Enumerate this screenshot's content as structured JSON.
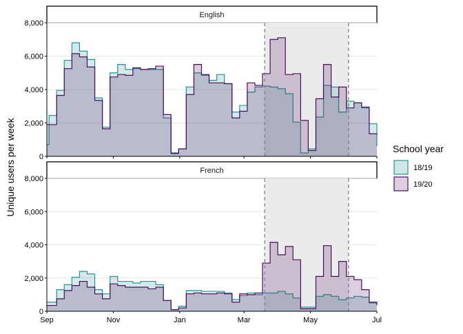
{
  "chart_data": {
    "type": "area",
    "ylabel": "Unique users per week",
    "xlabel": "",
    "x_ticks": [
      "Sep",
      "Nov",
      "Jan",
      "Mar",
      "May",
      "Jul"
    ],
    "y_ticks": [
      "0",
      "2,000",
      "4,000",
      "6,000",
      "8,000"
    ],
    "ylim": [
      0,
      8000
    ],
    "x_range": [
      "2018-09-01",
      "2019-07-01"
    ],
    "legend": {
      "title": "School year",
      "position": "right",
      "entries": [
        {
          "label": "18/19",
          "fill": "#d0e6e6",
          "stroke": "#2a9196"
        },
        {
          "label": "19/20",
          "fill": "#dccfe0",
          "stroke": "#4a0c5c"
        }
      ]
    },
    "shaded_period": {
      "start": "2019-03-20",
      "end": "2019-06-05"
    },
    "grid": true,
    "panels": [
      {
        "title": "English",
        "series": [
          {
            "name": "18/19",
            "points": [
              [
                "2018-09-01",
                700
              ],
              [
                "2018-09-03",
                2450
              ],
              [
                "2018-09-10",
                3950
              ],
              [
                "2018-09-17",
                5750
              ],
              [
                "2018-09-24",
                6800
              ],
              [
                "2018-10-01",
                6300
              ],
              [
                "2018-10-08",
                5800
              ],
              [
                "2018-10-15",
                3500
              ],
              [
                "2018-10-22",
                1750
              ],
              [
                "2018-10-29",
                5000
              ],
              [
                "2018-11-05",
                5500
              ],
              [
                "2018-11-12",
                5200
              ],
              [
                "2018-11-19",
                5250
              ],
              [
                "2018-11-26",
                5200
              ],
              [
                "2018-12-03",
                5200
              ],
              [
                "2018-12-10",
                5200
              ],
              [
                "2018-12-17",
                2300
              ],
              [
                "2018-12-24",
                150
              ],
              [
                "2018-12-31",
                450
              ],
              [
                "2019-01-07",
                4150
              ],
              [
                "2019-01-14",
                5000
              ],
              [
                "2019-01-21",
                4850
              ],
              [
                "2019-01-28",
                4550
              ],
              [
                "2019-02-04",
                4900
              ],
              [
                "2019-02-11",
                4350
              ],
              [
                "2019-02-18",
                2650
              ],
              [
                "2019-02-25",
                3050
              ],
              [
                "2019-03-04",
                3850
              ],
              [
                "2019-03-11",
                4150
              ],
              [
                "2019-03-18",
                4200
              ],
              [
                "2019-03-25",
                4150
              ],
              [
                "2019-04-01",
                4050
              ],
              [
                "2019-04-08",
                3750
              ],
              [
                "2019-04-15",
                2050
              ],
              [
                "2019-04-22",
                200
              ],
              [
                "2019-04-29",
                450
              ],
              [
                "2019-05-06",
                2350
              ],
              [
                "2019-05-13",
                4250
              ],
              [
                "2019-05-20",
                4150
              ],
              [
                "2019-05-27",
                2650
              ],
              [
                "2019-06-03",
                3300
              ],
              [
                "2019-06-10",
                3200
              ],
              [
                "2019-06-17",
                2900
              ],
              [
                "2019-06-24",
                1950
              ],
              [
                "2019-07-01",
                600
              ]
            ]
          },
          {
            "name": "19/20",
            "points": [
              [
                "2018-09-01",
                1900
              ],
              [
                "2018-09-03",
                1900
              ],
              [
                "2018-09-10",
                3650
              ],
              [
                "2018-09-17",
                5250
              ],
              [
                "2018-09-24",
                6150
              ],
              [
                "2018-10-01",
                5950
              ],
              [
                "2018-10-08",
                5350
              ],
              [
                "2018-10-15",
                3350
              ],
              [
                "2018-10-22",
                1650
              ],
              [
                "2018-10-29",
                4750
              ],
              [
                "2018-11-05",
                4900
              ],
              [
                "2018-11-12",
                4850
              ],
              [
                "2018-11-19",
                5300
              ],
              [
                "2018-11-26",
                5200
              ],
              [
                "2018-12-03",
                5250
              ],
              [
                "2018-12-10",
                5400
              ],
              [
                "2018-12-17",
                2500
              ],
              [
                "2018-12-24",
                200
              ],
              [
                "2018-12-31",
                450
              ],
              [
                "2019-01-07",
                3700
              ],
              [
                "2019-01-14",
                5500
              ],
              [
                "2019-01-21",
                4900
              ],
              [
                "2019-01-28",
                4400
              ],
              [
                "2019-02-04",
                4400
              ],
              [
                "2019-02-11",
                4350
              ],
              [
                "2019-02-18",
                2300
              ],
              [
                "2019-02-25",
                2700
              ],
              [
                "2019-03-04",
                4400
              ],
              [
                "2019-03-11",
                4250
              ],
              [
                "2019-03-18",
                4950
              ],
              [
                "2019-03-25",
                7000
              ],
              [
                "2019-04-01",
                7100
              ],
              [
                "2019-04-08",
                4900
              ],
              [
                "2019-04-15",
                4950
              ],
              [
                "2019-04-22",
                2150
              ],
              [
                "2019-04-29",
                350
              ],
              [
                "2019-05-06",
                3450
              ],
              [
                "2019-05-13",
                5500
              ],
              [
                "2019-05-20",
                3550
              ],
              [
                "2019-05-27",
                4150
              ],
              [
                "2019-06-03",
                2900
              ],
              [
                "2019-06-10",
                3200
              ],
              [
                "2019-06-17",
                2950
              ],
              [
                "2019-06-24",
                1350
              ],
              [
                "2019-07-01",
                1300
              ]
            ]
          }
        ]
      },
      {
        "title": "French",
        "series": [
          {
            "name": "18/19",
            "points": [
              [
                "2018-09-01",
                550
              ],
              [
                "2018-09-03",
                550
              ],
              [
                "2018-09-10",
                1300
              ],
              [
                "2018-09-17",
                1600
              ],
              [
                "2018-09-24",
                2050
              ],
              [
                "2018-10-01",
                2400
              ],
              [
                "2018-10-08",
                2250
              ],
              [
                "2018-10-15",
                1300
              ],
              [
                "2018-10-22",
                1050
              ],
              [
                "2018-10-29",
                2100
              ],
              [
                "2018-11-05",
                1800
              ],
              [
                "2018-11-12",
                1800
              ],
              [
                "2018-11-19",
                1700
              ],
              [
                "2018-11-26",
                1800
              ],
              [
                "2018-12-03",
                1800
              ],
              [
                "2018-12-10",
                1600
              ],
              [
                "2018-12-17",
                650
              ],
              [
                "2018-12-24",
                100
              ],
              [
                "2018-12-31",
                300
              ],
              [
                "2019-01-07",
                1250
              ],
              [
                "2019-01-14",
                1250
              ],
              [
                "2019-01-21",
                1200
              ],
              [
                "2019-01-28",
                1200
              ],
              [
                "2019-02-04",
                1200
              ],
              [
                "2019-02-11",
                1100
              ],
              [
                "2019-02-18",
                700
              ],
              [
                "2019-02-25",
                950
              ],
              [
                "2019-03-04",
                1100
              ],
              [
                "2019-03-11",
                1000
              ],
              [
                "2019-03-18",
                1100
              ],
              [
                "2019-03-25",
                1100
              ],
              [
                "2019-04-01",
                1200
              ],
              [
                "2019-04-08",
                1050
              ],
              [
                "2019-04-15",
                800
              ],
              [
                "2019-04-22",
                250
              ],
              [
                "2019-04-29",
                250
              ],
              [
                "2019-05-06",
                900
              ],
              [
                "2019-05-13",
                1000
              ],
              [
                "2019-05-20",
                900
              ],
              [
                "2019-05-27",
                700
              ],
              [
                "2019-06-03",
                800
              ],
              [
                "2019-06-10",
                900
              ],
              [
                "2019-06-17",
                850
              ],
              [
                "2019-06-24",
                500
              ],
              [
                "2019-07-01",
                350
              ]
            ]
          },
          {
            "name": "19/20",
            "points": [
              [
                "2018-09-01",
                350
              ],
              [
                "2018-09-03",
                350
              ],
              [
                "2018-09-10",
                750
              ],
              [
                "2018-09-17",
                1250
              ],
              [
                "2018-09-24",
                1550
              ],
              [
                "2018-10-01",
                1800
              ],
              [
                "2018-10-08",
                1450
              ],
              [
                "2018-10-15",
                1050
              ],
              [
                "2018-10-22",
                750
              ],
              [
                "2018-10-29",
                1650
              ],
              [
                "2018-11-05",
                1550
              ],
              [
                "2018-11-12",
                1450
              ],
              [
                "2018-11-19",
                1450
              ],
              [
                "2018-11-26",
                1450
              ],
              [
                "2018-12-03",
                1350
              ],
              [
                "2018-12-10",
                1450
              ],
              [
                "2018-12-17",
                650
              ],
              [
                "2018-12-24",
                100
              ],
              [
                "2018-12-31",
                200
              ],
              [
                "2019-01-07",
                1050
              ],
              [
                "2019-01-14",
                1100
              ],
              [
                "2019-01-21",
                1050
              ],
              [
                "2019-01-28",
                1050
              ],
              [
                "2019-02-04",
                1100
              ],
              [
                "2019-02-11",
                1050
              ],
              [
                "2019-02-18",
                550
              ],
              [
                "2019-02-25",
                1050
              ],
              [
                "2019-03-04",
                1000
              ],
              [
                "2019-03-11",
                1100
              ],
              [
                "2019-03-18",
                2900
              ],
              [
                "2019-03-25",
                4150
              ],
              [
                "2019-04-01",
                3400
              ],
              [
                "2019-04-08",
                3900
              ],
              [
                "2019-04-15",
                3100
              ],
              [
                "2019-04-22",
                150
              ],
              [
                "2019-04-29",
                150
              ],
              [
                "2019-05-06",
                2100
              ],
              [
                "2019-05-13",
                3950
              ],
              [
                "2019-05-20",
                2100
              ],
              [
                "2019-05-27",
                3000
              ],
              [
                "2019-06-03",
                2100
              ],
              [
                "2019-06-10",
                1900
              ],
              [
                "2019-06-17",
                1300
              ],
              [
                "2019-06-24",
                550
              ],
              [
                "2019-07-01",
                400
              ]
            ]
          }
        ]
      }
    ]
  }
}
